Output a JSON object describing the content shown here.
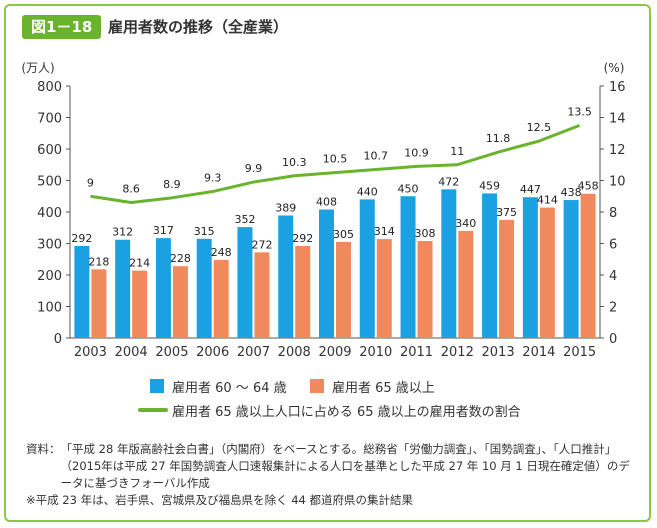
{
  "figure": {
    "number": "図1－18",
    "title": "雇用者数の推移（全産業）"
  },
  "colors": {
    "accent": "#8dc63f",
    "badge": "#6ab42d",
    "bar_60_64": "#1ba1e2",
    "bar_65_plus": "#f08a5d",
    "line_ratio": "#6ab42d"
  },
  "chart_data": {
    "type": "bar",
    "title": "雇用者数の推移（全産業）",
    "categories": [
      "2003",
      "2004",
      "2005",
      "2006",
      "2007",
      "2008",
      "2009",
      "2010",
      "2011",
      "2012",
      "2013",
      "2014",
      "2015"
    ],
    "y_left_unit": "(万人)",
    "y_right_unit": "(%)",
    "y_left_ticks": [
      0,
      100,
      200,
      300,
      400,
      500,
      600,
      700,
      800
    ],
    "y_right_ticks": [
      0,
      2,
      4,
      6,
      8,
      10,
      12,
      14,
      16
    ],
    "ylim_left": [
      0,
      800
    ],
    "ylim_right": [
      0,
      16
    ],
    "grid": false,
    "legend_position": "bottom",
    "series": [
      {
        "name": "雇用者 60 ～ 64 歳",
        "kind": "bar",
        "axis": "left",
        "color": "#1ba1e2",
        "values": [
          292,
          312,
          317,
          315,
          352,
          389,
          408,
          440,
          450,
          472,
          459,
          447,
          438
        ],
        "labels": [
          "292",
          "312",
          "317",
          "315",
          "352",
          "389",
          "408",
          "440",
          "450",
          "472",
          "459",
          "447",
          "438"
        ]
      },
      {
        "name": "雇用者 65 歳以上",
        "kind": "bar",
        "axis": "left",
        "color": "#f08a5d",
        "values": [
          218,
          214,
          228,
          248,
          272,
          292,
          305,
          314,
          308,
          340,
          375,
          414,
          458
        ],
        "labels": [
          "218",
          "214",
          "228",
          "248",
          "272",
          "292",
          "305",
          "314",
          "308",
          "340",
          "375",
          "414",
          "458"
        ]
      },
      {
        "name": "雇用者 65 歳以上人口に占める 65 歳以上の雇用者数の割合",
        "kind": "line",
        "axis": "right",
        "color": "#6ab42d",
        "values": [
          9,
          8.6,
          8.9,
          9.3,
          9.9,
          10.3,
          10.5,
          10.7,
          10.9,
          11,
          11.8,
          12.5,
          13.5
        ],
        "labels": [
          "9",
          "8.6",
          "8.9",
          "9.3",
          "9.9",
          "10.3",
          "10.5",
          "10.7",
          "10.9",
          "11",
          "11.8",
          "12.5",
          "13.5"
        ]
      }
    ]
  },
  "legend": {
    "bar_60_64": "雇用者 60 ～ 64 歳",
    "bar_65_plus": "雇用者 65 歳以上",
    "line_ratio": "雇用者 65 歳以上人口に占める 65 歳以上の雇用者数の割合"
  },
  "notes": {
    "source_label": "資料：",
    "source_text": "「平成 28 年版高齢社会白書」（内閣府）をベースとする。総務省「労働力調査」、「国勢調査」、「人口推計」（2015年は平成 27 年国勢調査人口速報集計による人口を基準とした平成 27 年 10 月 1 日現在確定値）のデータに基づきフォーバル作成",
    "footnote": "※平成 23 年は、岩手県、宮城県及び福島県を除く 44 都道府県の集計結果"
  }
}
